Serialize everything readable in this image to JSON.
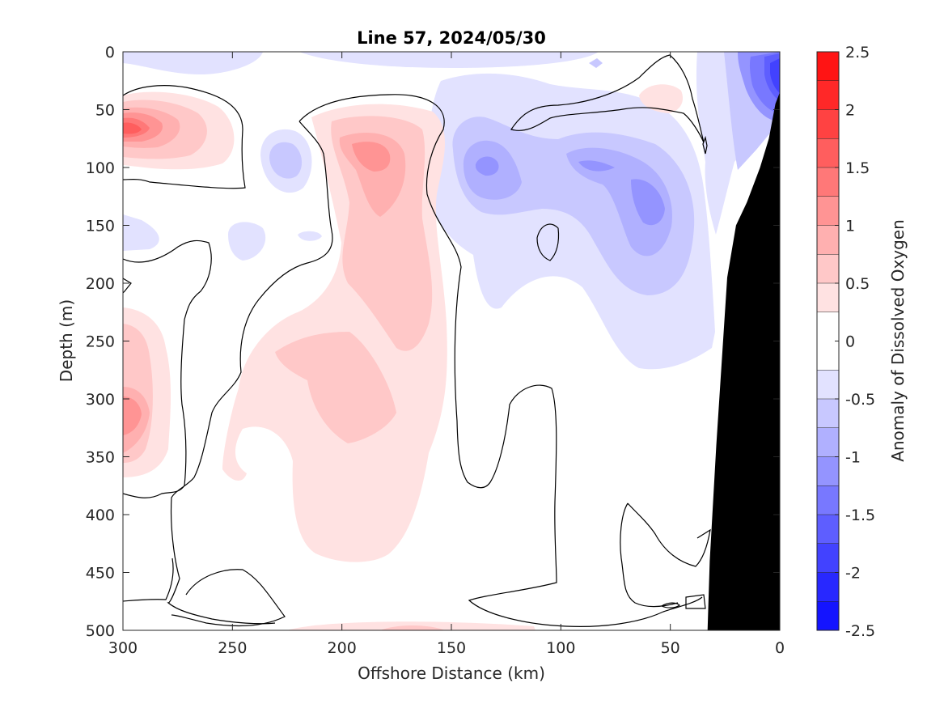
{
  "chart_data": {
    "type": "heatmap",
    "subtype": "filled-contour-section",
    "title": "Line 57, 2024/05/30",
    "xlabel": "Offshore Distance (km)",
    "ylabel": "Depth (m)",
    "colorbar_label": "Anomaly of Dissolved Oxygen",
    "xlim": [
      300,
      0
    ],
    "x_reversed": true,
    "ylim": [
      0,
      500
    ],
    "y_reversed": true,
    "x_ticks": [
      300,
      250,
      200,
      150,
      100,
      50,
      0
    ],
    "x_tick_labels": [
      "300",
      "250",
      "200",
      "150",
      "100",
      "50",
      "0"
    ],
    "y_ticks": [
      0,
      50,
      100,
      150,
      200,
      250,
      300,
      350,
      400,
      450,
      500
    ],
    "y_tick_labels": [
      "0",
      "50",
      "100",
      "150",
      "200",
      "250",
      "300",
      "350",
      "400",
      "450",
      "500"
    ],
    "colorbar_ticks": [
      2.5,
      2,
      1.5,
      1,
      0.5,
      0,
      -0.5,
      -1,
      -1.5,
      -2,
      -2.5
    ],
    "colorbar_tick_labels": [
      "2.5",
      "2",
      "1.5",
      "1",
      "0.5",
      "0",
      "-0.5",
      "-1",
      "-1.5",
      "-2",
      "-2.5"
    ],
    "clim": [
      -2.5,
      2.5
    ],
    "colormap": "blue-white-red",
    "colormap_levels": [
      {
        "range": [
          2.25,
          2.5
        ],
        "color": "#ff1414"
      },
      {
        "range": [
          2.0,
          2.25
        ],
        "color": "#ff2828"
      },
      {
        "range": [
          1.75,
          2.0
        ],
        "color": "#ff4242"
      },
      {
        "range": [
          1.5,
          1.75
        ],
        "color": "#ff5e5e"
      },
      {
        "range": [
          1.25,
          1.5
        ],
        "color": "#ff7878"
      },
      {
        "range": [
          1.0,
          1.25
        ],
        "color": "#ff9494"
      },
      {
        "range": [
          0.75,
          1.0
        ],
        "color": "#ffb0b0"
      },
      {
        "range": [
          0.5,
          0.75
        ],
        "color": "#ffc8c8"
      },
      {
        "range": [
          0.25,
          0.5
        ],
        "color": "#ffe2e2"
      },
      {
        "range": [
          -0.25,
          0.25
        ],
        "color": "#ffffff"
      },
      {
        "range": [
          -0.5,
          -0.25
        ],
        "color": "#e2e2ff"
      },
      {
        "range": [
          -0.75,
          -0.5
        ],
        "color": "#c8c8ff"
      },
      {
        "range": [
          -1.0,
          -0.75
        ],
        "color": "#b0b0ff"
      },
      {
        "range": [
          -1.25,
          -1.0
        ],
        "color": "#9494ff"
      },
      {
        "range": [
          -1.5,
          -1.25
        ],
        "color": "#7878ff"
      },
      {
        "range": [
          -1.75,
          -1.5
        ],
        "color": "#5e5eff"
      },
      {
        "range": [
          -2.0,
          -1.75
        ],
        "color": "#4242ff"
      },
      {
        "range": [
          -2.25,
          -2.0
        ],
        "color": "#2828ff"
      },
      {
        "range": [
          -2.5,
          -2.25
        ],
        "color": "#1414ff"
      }
    ],
    "zero_contour_color": "#000000",
    "bathymetry_color": "#000000",
    "bathymetry": [
      {
        "x": 0,
        "depth": 35
      },
      {
        "x": 2,
        "depth": 45
      },
      {
        "x": 5,
        "depth": 75
      },
      {
        "x": 9,
        "depth": 100
      },
      {
        "x": 15,
        "depth": 130
      },
      {
        "x": 20,
        "depth": 150
      },
      {
        "x": 24,
        "depth": 195
      },
      {
        "x": 29,
        "depth": 340
      },
      {
        "x": 32,
        "depth": 440
      },
      {
        "x": 33,
        "depth": 500
      }
    ],
    "anomaly_features": [
      {
        "label": "shelf low-oxygen core",
        "x": 2,
        "depth": 22,
        "value": -1.6
      },
      {
        "label": "offshore surface high",
        "x": 292,
        "depth": 70,
        "value": 1.6
      },
      {
        "label": "subsurface high core",
        "x": 182,
        "depth": 95,
        "value": 1.1
      },
      {
        "label": "subsurface low",
        "x": 135,
        "depth": 95,
        "value": -1.1
      },
      {
        "label": "subsurface low",
        "x": 85,
        "depth": 98,
        "value": -1.0
      },
      {
        "label": "subsurface low",
        "x": 57,
        "depth": 130,
        "value": -0.9
      },
      {
        "label": "mid-depth high",
        "x": 205,
        "depth": 300,
        "value": 0.6
      },
      {
        "label": "offshore mid-depth high",
        "x": 292,
        "depth": 315,
        "value": 0.8
      }
    ]
  }
}
